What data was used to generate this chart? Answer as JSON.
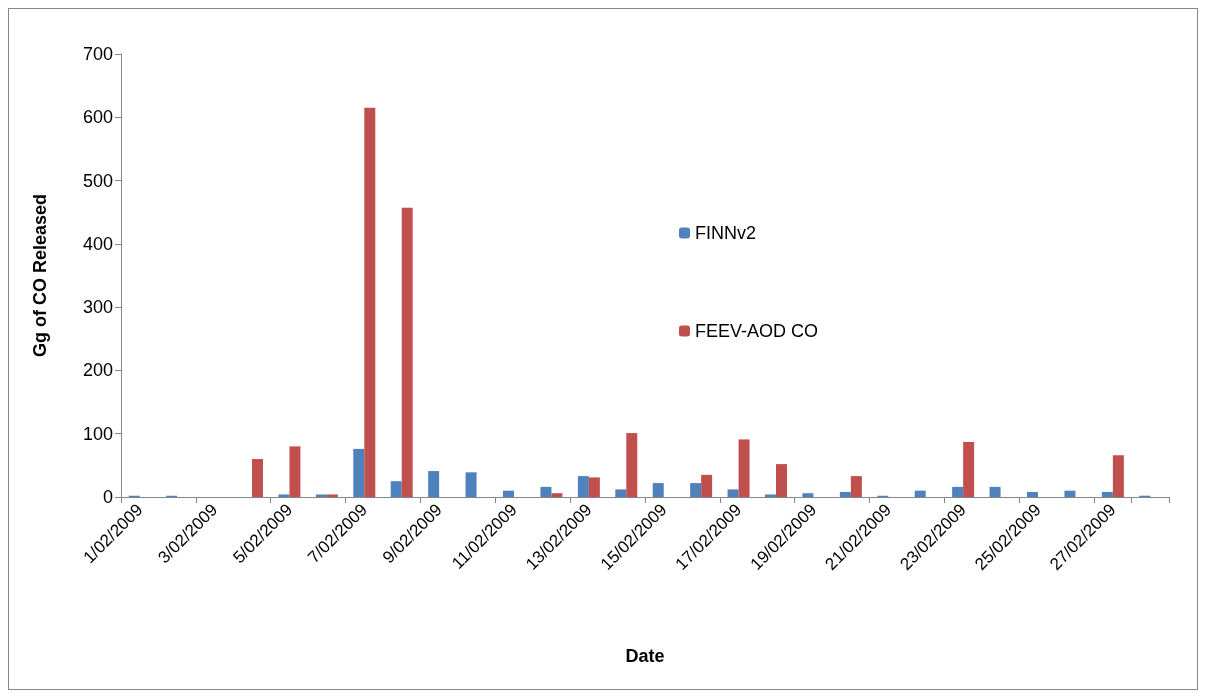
{
  "chart_data": {
    "type": "bar",
    "xlabel": "Date",
    "ylabel": "Gg of CO Released",
    "categories": [
      "1/02/2009",
      null,
      "3/02/2009",
      null,
      "5/02/2009",
      null,
      "7/02/2009",
      null,
      "9/02/2009",
      null,
      "11/02/2009",
      null,
      "13/02/2009",
      null,
      "15/02/2009",
      null,
      "17/02/2009",
      null,
      "19/02/2009",
      null,
      "21/02/2009",
      null,
      "23/02/2009",
      null,
      "25/02/2009",
      null,
      "27/02/2009",
      null
    ],
    "series": [
      {
        "name": "FINNv2",
        "color": "#4f81bd",
        "values": [
          2,
          2,
          0,
          0,
          4,
          4,
          76,
          25,
          41,
          39,
          10,
          16,
          33,
          12,
          22,
          22,
          12,
          4,
          6,
          8,
          2,
          10,
          16,
          16,
          8,
          10,
          8,
          2
        ]
      },
      {
        "name": "FEEV-AOD CO",
        "color": "#c0504d",
        "values": [
          0,
          0,
          0,
          60,
          80,
          4,
          615,
          457,
          0,
          0,
          0,
          6,
          31,
          101,
          0,
          35,
          91,
          52,
          0,
          33,
          0,
          0,
          87,
          0,
          0,
          0,
          66,
          0
        ]
      }
    ],
    "ylim": [
      0,
      700
    ],
    "yticks": [
      0,
      100,
      200,
      300,
      400,
      500,
      600,
      700
    ],
    "grid": false,
    "legend": "center"
  }
}
